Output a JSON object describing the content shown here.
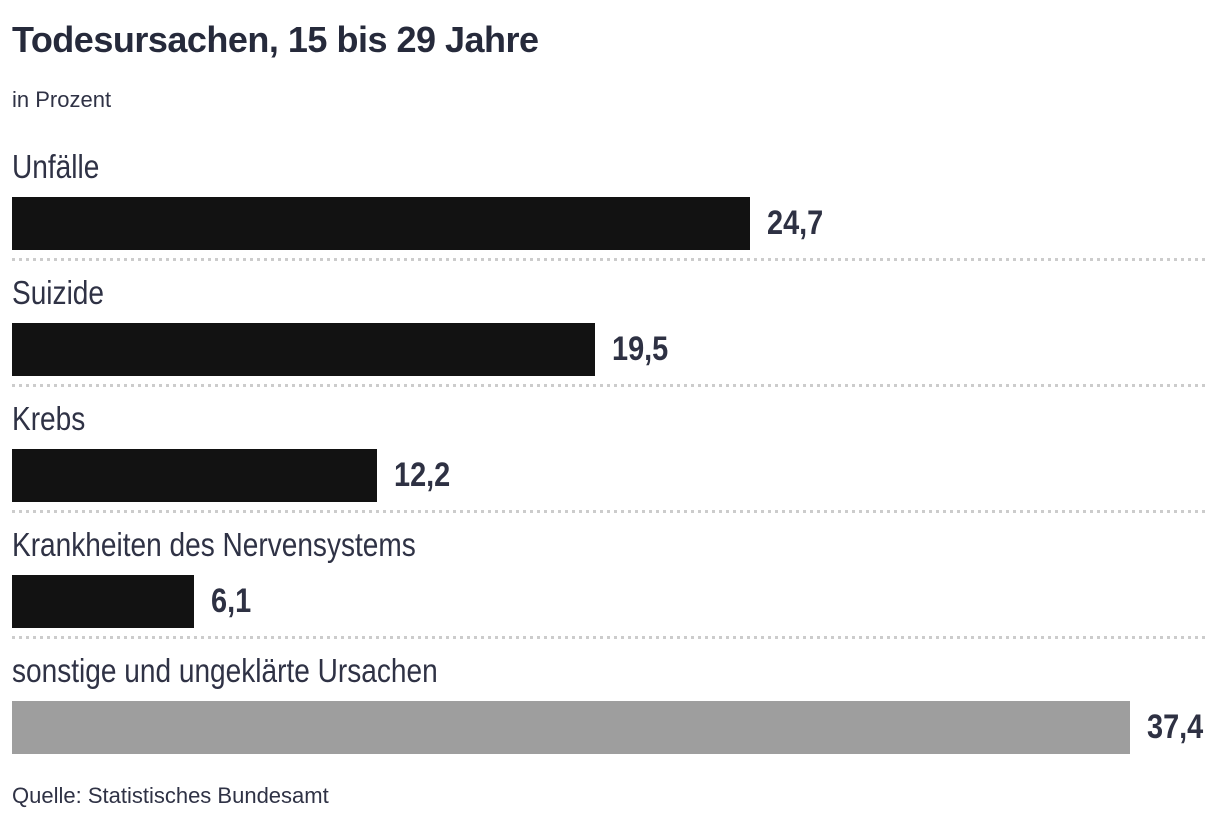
{
  "header": {
    "title": "Todesursachen, 15 bis 29 Jahre",
    "subtitle": "in Prozent"
  },
  "chart_data": {
    "type": "bar",
    "orientation": "horizontal",
    "title": "Todesursachen, 15 bis 29 Jahre",
    "subtitle": "in Prozent",
    "unit": "Prozent",
    "xlim": [
      0,
      37.4
    ],
    "grid": false,
    "legend": false,
    "categories": [
      "Unfälle",
      "Suizide",
      "Krebs",
      "Krankheiten des Nervensystems",
      "sonstige und ungeklärte Ursachen"
    ],
    "values": [
      24.7,
      19.5,
      12.2,
      6.1,
      37.4
    ],
    "rows": [
      {
        "label": "Unfälle",
        "value": 24.7,
        "display_value": "24,7",
        "bar_color": "#121212"
      },
      {
        "label": "Suizide",
        "value": 19.5,
        "display_value": "19,5",
        "bar_color": "#121212"
      },
      {
        "label": "Krebs",
        "value": 12.2,
        "display_value": "12,2",
        "bar_color": "#121212"
      },
      {
        "label": "Krankheiten des Nervensystems",
        "value": 6.1,
        "display_value": "6,1",
        "bar_color": "#121212"
      },
      {
        "label": "sonstige und ungeklärte Ursachen",
        "value": 37.4,
        "display_value": "37,4",
        "bar_color": "#9e9e9e"
      }
    ]
  },
  "footer": {
    "source": "Quelle: Statistisches Bundesamt"
  },
  "colors": {
    "bar_default": "#121212",
    "bar_other": "#9e9e9e",
    "text": "#2f3245",
    "separator": "#cccccc",
    "background": "#ffffff"
  }
}
